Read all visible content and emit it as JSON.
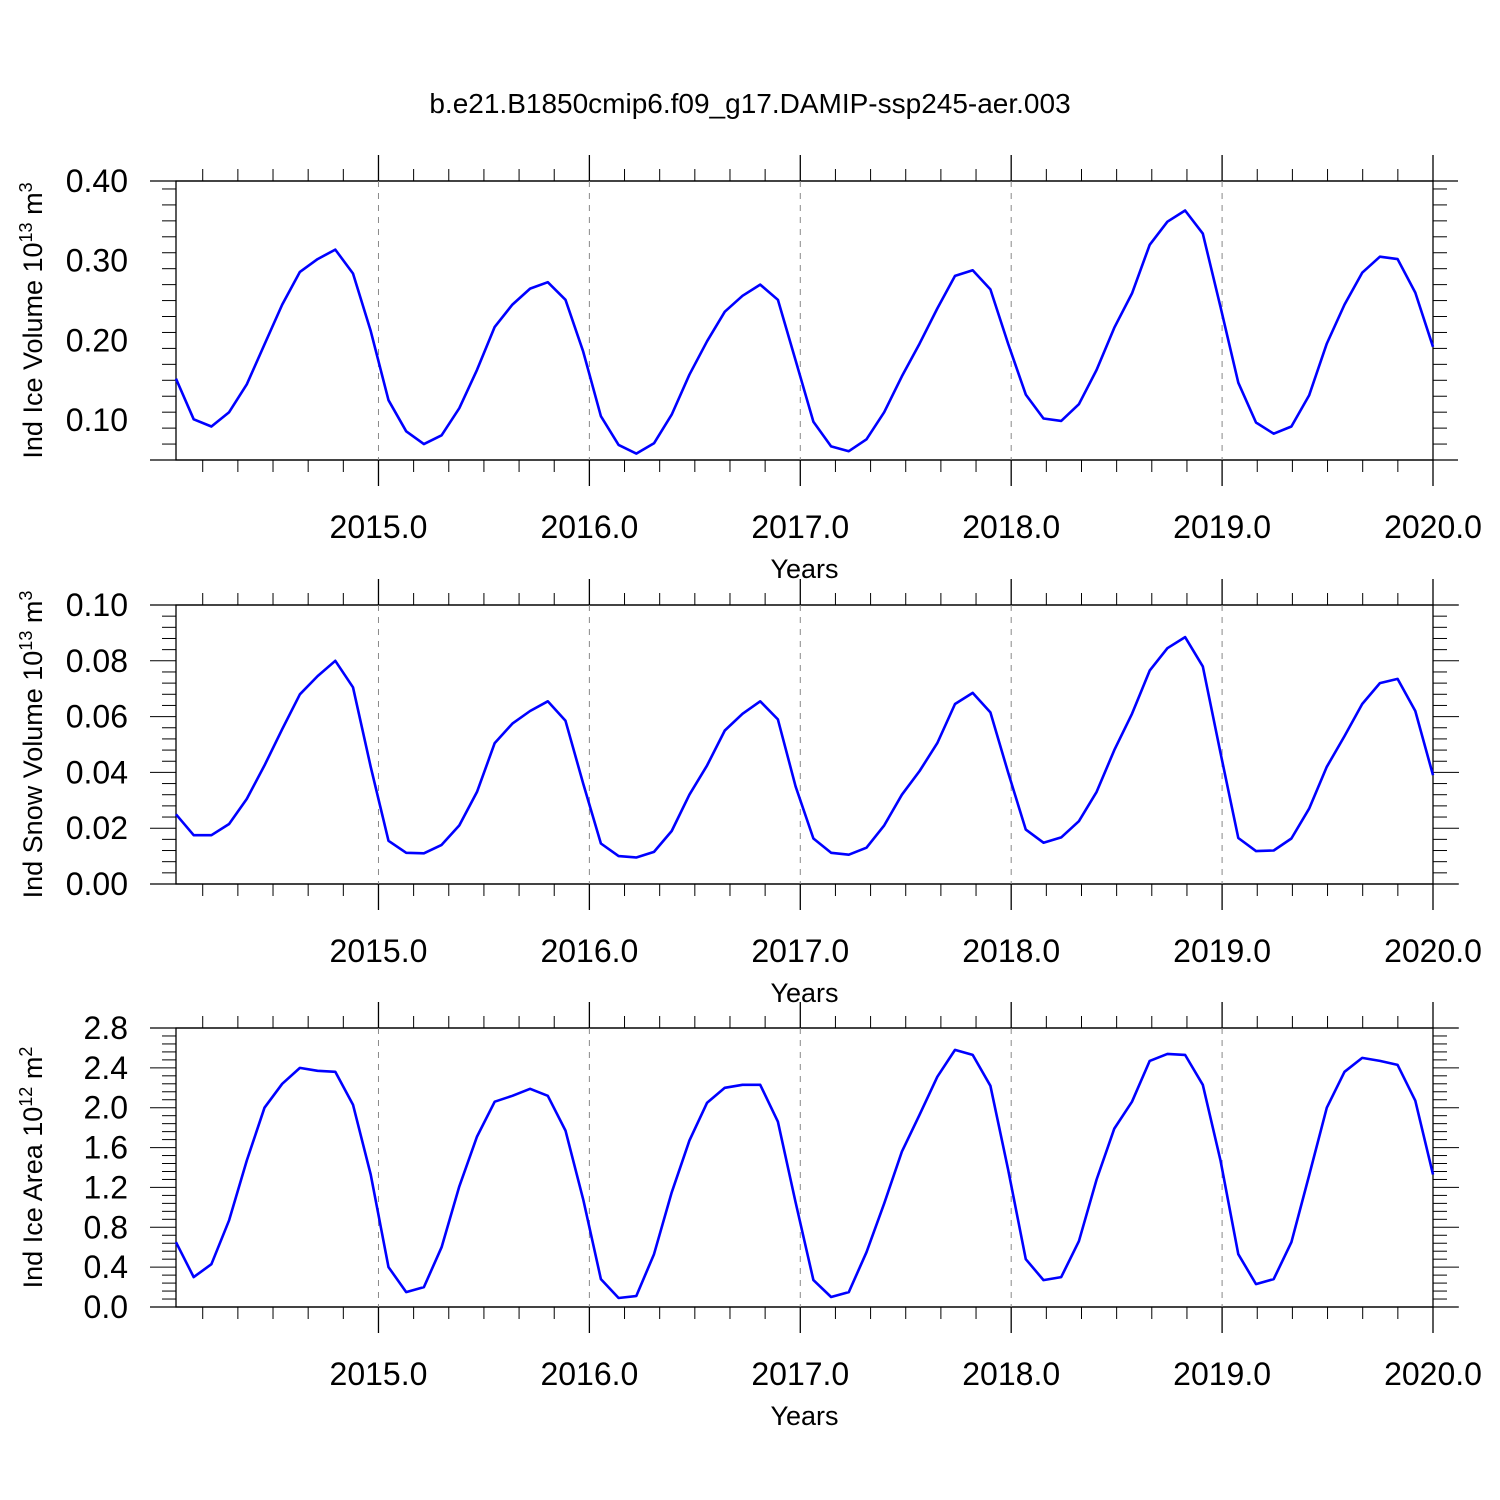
{
  "title": "b.e21.B1850cmip6.f09_g17.DAMIP-ssp245-aer.003",
  "colors": {
    "line": "#0000ff",
    "axis": "#000000",
    "grid": "#888888"
  },
  "chart_data": [
    {
      "type": "line",
      "xlabel": "Years",
      "ylabel": {
        "text": "Ind Ice Volume 10",
        "exp": "13",
        "unit": " m",
        "unit_exp": "3"
      },
      "xlim": [
        2014.04,
        2020.0
      ],
      "ylim": [
        0.05,
        0.4
      ],
      "yticks": [
        0.1,
        0.2,
        0.3,
        0.4
      ],
      "ytick_labels": [
        "0.10",
        "0.20",
        "0.30",
        "0.40"
      ],
      "xticks": [
        2015.0,
        2016.0,
        2017.0,
        2018.0,
        2019.0,
        2020.0
      ],
      "xtick_labels": [
        "2015.0",
        "2016.0",
        "2017.0",
        "2018.0",
        "2019.0",
        "2020.0"
      ],
      "grid": "dashed vertical at years",
      "series": [
        {
          "values": [
            0.152,
            0.101,
            0.092,
            0.11,
            0.145,
            0.195,
            0.245,
            0.286,
            0.302,
            0.314,
            0.284,
            0.212,
            0.125,
            0.086,
            0.07,
            0.081,
            0.115,
            0.163,
            0.217,
            0.245,
            0.265,
            0.273,
            0.251,
            0.186,
            0.105,
            0.069,
            0.058,
            0.071,
            0.107,
            0.157,
            0.199,
            0.236,
            0.256,
            0.27,
            0.251,
            0.175,
            0.098,
            0.067,
            0.061,
            0.076,
            0.11,
            0.155,
            0.196,
            0.24,
            0.281,
            0.288,
            0.264,
            0.196,
            0.132,
            0.102,
            0.099,
            0.12,
            0.163,
            0.216,
            0.259,
            0.32,
            0.349,
            0.363,
            0.334,
            0.242,
            0.147,
            0.097,
            0.083,
            0.092,
            0.131,
            0.196,
            0.245,
            0.285,
            0.305,
            0.302,
            0.26,
            0.192
          ]
        }
      ]
    },
    {
      "type": "line",
      "xlabel": "Years",
      "ylabel": {
        "text": "Ind Snow Volume 10",
        "exp": "13",
        "unit": " m",
        "unit_exp": "3"
      },
      "xlim": [
        2014.04,
        2020.0
      ],
      "ylim": [
        0.0,
        0.1
      ],
      "yticks": [
        0.0,
        0.02,
        0.04,
        0.06,
        0.08,
        0.1
      ],
      "ytick_labels": [
        "0.00",
        "0.02",
        "0.04",
        "0.06",
        "0.08",
        "0.10"
      ],
      "xticks": [
        2015.0,
        2016.0,
        2017.0,
        2018.0,
        2019.0,
        2020.0
      ],
      "xtick_labels": [
        "2015.0",
        "2016.0",
        "2017.0",
        "2018.0",
        "2019.0",
        "2020.0"
      ],
      "grid": "dashed vertical at years",
      "series": [
        {
          "values": [
            0.025,
            0.0175,
            0.0175,
            0.0215,
            0.0305,
            0.0425,
            0.0555,
            0.068,
            0.0745,
            0.08,
            0.0705,
            0.042,
            0.0155,
            0.0112,
            0.011,
            0.014,
            0.021,
            0.033,
            0.0505,
            0.0575,
            0.062,
            0.0655,
            0.0585,
            0.036,
            0.0145,
            0.01,
            0.0095,
            0.0115,
            0.019,
            0.032,
            0.0425,
            0.055,
            0.061,
            0.0655,
            0.059,
            0.035,
            0.0163,
            0.0112,
            0.0105,
            0.013,
            0.021,
            0.032,
            0.0405,
            0.0505,
            0.0645,
            0.0685,
            0.0615,
            0.04,
            0.0195,
            0.0148,
            0.0167,
            0.0225,
            0.033,
            0.048,
            0.061,
            0.0765,
            0.0845,
            0.0885,
            0.078,
            0.047,
            0.0165,
            0.0118,
            0.012,
            0.0163,
            0.027,
            0.042,
            0.053,
            0.0645,
            0.072,
            0.0735,
            0.062,
            0.039
          ]
        }
      ]
    },
    {
      "type": "line",
      "xlabel": "Years",
      "ylabel": {
        "text": "Ind Ice Area 10",
        "exp": "12",
        "unit": " m",
        "unit_exp": "2"
      },
      "xlim": [
        2014.04,
        2020.0
      ],
      "ylim": [
        0.0,
        2.8
      ],
      "yticks": [
        0.0,
        0.4,
        0.8,
        1.2,
        1.6,
        2.0,
        2.4,
        2.8
      ],
      "ytick_labels": [
        "0.0",
        "0.4",
        "0.8",
        "1.2",
        "1.6",
        "2.0",
        "2.4",
        "2.8"
      ],
      "xticks": [
        2015.0,
        2016.0,
        2017.0,
        2018.0,
        2019.0,
        2020.0
      ],
      "xtick_labels": [
        "2015.0",
        "2016.0",
        "2017.0",
        "2018.0",
        "2019.0",
        "2020.0"
      ],
      "grid": "dashed vertical at years",
      "series": [
        {
          "values": [
            0.65,
            0.3,
            0.43,
            0.87,
            1.47,
            2.0,
            2.24,
            2.4,
            2.37,
            2.36,
            2.03,
            1.33,
            0.4,
            0.15,
            0.2,
            0.6,
            1.21,
            1.71,
            2.06,
            2.12,
            2.19,
            2.12,
            1.77,
            1.08,
            0.28,
            0.09,
            0.11,
            0.53,
            1.15,
            1.67,
            2.05,
            2.2,
            2.23,
            2.23,
            1.86,
            1.05,
            0.27,
            0.1,
            0.15,
            0.55,
            1.04,
            1.56,
            1.93,
            2.31,
            2.58,
            2.53,
            2.22,
            1.38,
            0.48,
            0.27,
            0.3,
            0.66,
            1.28,
            1.79,
            2.06,
            2.47,
            2.54,
            2.53,
            2.23,
            1.47,
            0.53,
            0.23,
            0.28,
            0.65,
            1.32,
            2.0,
            2.36,
            2.5,
            2.47,
            2.43,
            2.07,
            1.33
          ]
        }
      ]
    }
  ]
}
